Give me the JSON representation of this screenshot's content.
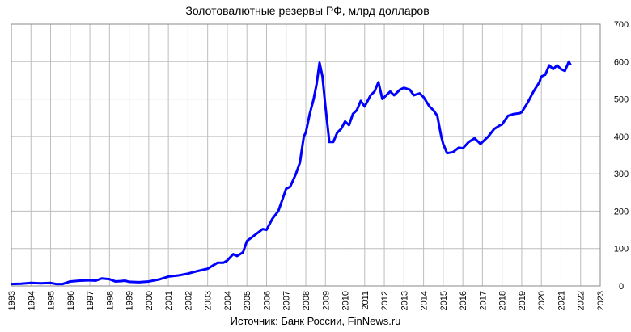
{
  "chart_data": {
    "type": "line",
    "title": "Золотовалютные резервы РФ, млрд долларов",
    "source": "Источник: Банк России, FinNews.ru",
    "x": [
      1993.0,
      1993.5,
      1994.0,
      1994.5,
      1995.0,
      1995.3,
      1995.6,
      1996.0,
      1996.5,
      1997.0,
      1997.3,
      1997.6,
      1998.0,
      1998.3,
      1998.6,
      1998.8,
      1999.0,
      1999.5,
      2000.0,
      2000.5,
      2001.0,
      2001.5,
      2002.0,
      2002.5,
      2003.0,
      2003.5,
      2003.8,
      2004.0,
      2004.3,
      2004.5,
      2004.8,
      2005.0,
      2005.5,
      2005.8,
      2006.0,
      2006.3,
      2006.6,
      2006.9,
      2007.0,
      2007.2,
      2007.5,
      2007.7,
      2007.9,
      2008.0,
      2008.2,
      2008.4,
      2008.55,
      2008.7,
      2008.85,
      2009.0,
      2009.2,
      2009.4,
      2009.6,
      2009.8,
      2010.0,
      2010.2,
      2010.4,
      2010.6,
      2010.8,
      2011.0,
      2011.3,
      2011.5,
      2011.7,
      2011.9,
      2012.0,
      2012.3,
      2012.5,
      2012.8,
      2013.0,
      2013.3,
      2013.5,
      2013.8,
      2014.0,
      2014.3,
      2014.5,
      2014.7,
      2014.9,
      2015.0,
      2015.2,
      2015.5,
      2015.8,
      2016.0,
      2016.3,
      2016.6,
      2016.9,
      2017.0,
      2017.3,
      2017.6,
      2017.9,
      2018.0,
      2018.3,
      2018.6,
      2018.9,
      2019.0,
      2019.3,
      2019.6,
      2019.9,
      2020.0,
      2020.2,
      2020.4,
      2020.6,
      2020.8,
      2021.0,
      2021.2,
      2021.4,
      2021.5
    ],
    "series": [
      {
        "color": "#0000ff",
        "values": [
          5,
          6,
          8,
          7,
          8,
          5,
          5,
          12,
          14,
          15,
          14,
          20,
          18,
          12,
          13,
          14,
          11,
          10,
          12,
          17,
          25,
          28,
          33,
          40,
          46,
          62,
          62,
          68,
          85,
          80,
          90,
          120,
          140,
          152,
          150,
          180,
          200,
          245,
          260,
          265,
          300,
          330,
          400,
          410,
          460,
          500,
          540,
          597,
          560,
          480,
          385,
          385,
          410,
          420,
          440,
          430,
          460,
          470,
          495,
          480,
          510,
          520,
          545,
          500,
          505,
          520,
          510,
          525,
          530,
          525,
          510,
          515,
          505,
          480,
          470,
          455,
          400,
          380,
          355,
          358,
          370,
          368,
          385,
          395,
          380,
          385,
          400,
          420,
          430,
          432,
          455,
          460,
          462,
          465,
          490,
          520,
          545,
          560,
          565,
          590,
          580,
          590,
          580,
          575,
          600,
          590
        ]
      }
    ],
    "xlim": [
      1993,
      2023
    ],
    "xticks": [
      1993,
      1994,
      1995,
      1996,
      1997,
      1998,
      1999,
      2000,
      2001,
      2002,
      2003,
      2004,
      2005,
      2006,
      2007,
      2008,
      2009,
      2010,
      2011,
      2012,
      2013,
      2014,
      2015,
      2016,
      2017,
      2018,
      2019,
      2020,
      2021,
      2022,
      2023
    ],
    "ylim": [
      0,
      700
    ],
    "yticks": [
      0,
      100,
      200,
      300,
      400,
      500,
      600,
      700
    ],
    "grid": true
  }
}
